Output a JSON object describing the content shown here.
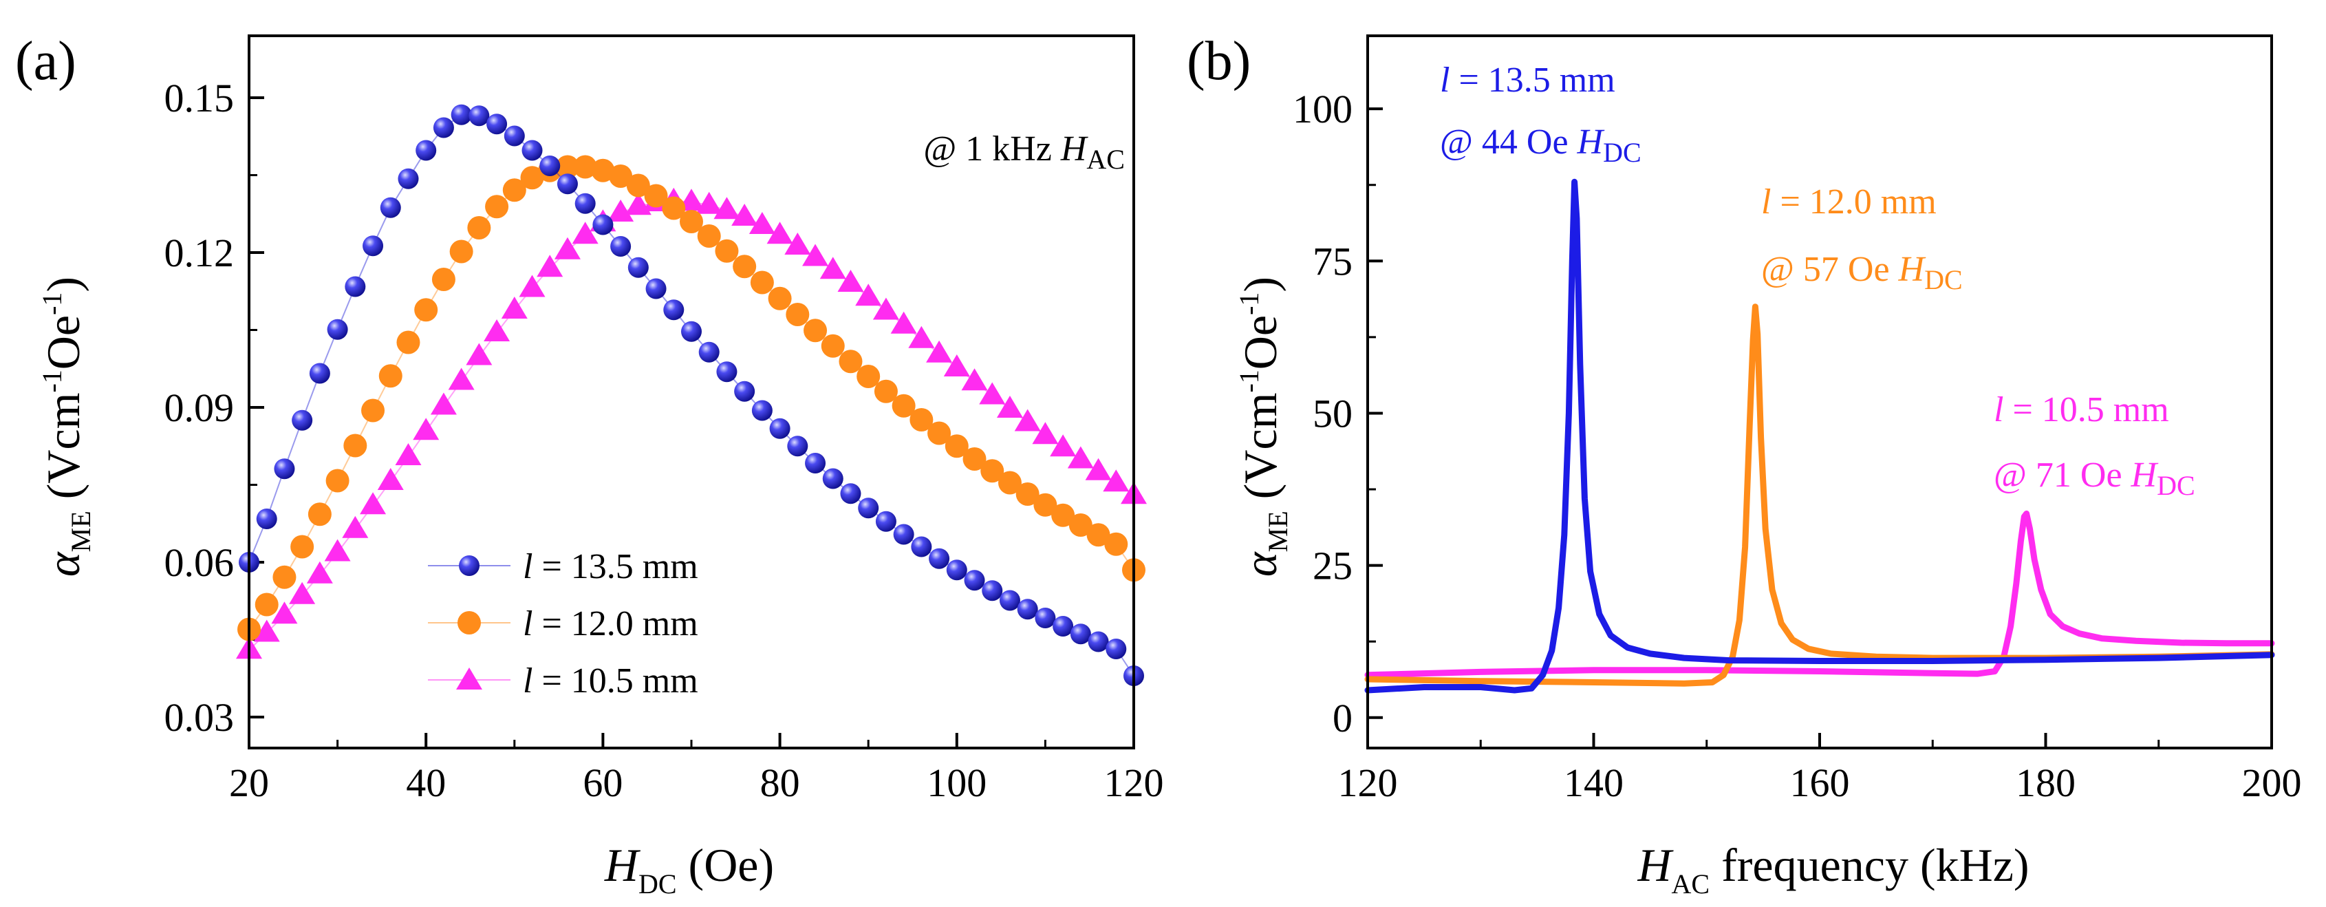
{
  "chart_data": [
    {
      "panel": "(a)",
      "type": "scatter",
      "xlabel_main": "H",
      "xlabel_sub": "DC",
      "xlabel_rest": " (Oe)",
      "ylabel_main": "α",
      "ylabel_sub": "ME",
      "ylabel_rest": " (Vcm",
      "ylabel_exp1": "-1",
      "ylabel_mid": "Oe",
      "ylabel_exp2": "-1",
      "ylabel_end": ")",
      "annotation_pre": "@ 1 kHz ",
      "annotation_main": "H",
      "annotation_sub": "AC",
      "xlim": [
        20,
        120
      ],
      "ylim": [
        0.024,
        0.162
      ],
      "xticks": [
        20,
        40,
        60,
        80,
        100,
        120
      ],
      "xtick_labels": [
        "20",
        "40",
        "60",
        "80",
        "100",
        "120"
      ],
      "yticks": [
        0.03,
        0.06,
        0.09,
        0.12,
        0.15
      ],
      "ytick_labels": [
        "0.03",
        "0.06",
        "0.09",
        "0.12",
        "0.15"
      ],
      "legend_position": "bottom-left",
      "x": [
        20,
        22,
        24,
        26,
        28,
        30,
        32,
        34,
        36,
        38,
        40,
        42,
        44,
        46,
        48,
        50,
        52,
        54,
        56,
        58,
        60,
        62,
        64,
        66,
        68,
        70,
        72,
        74,
        76,
        78,
        80,
        82,
        84,
        86,
        88,
        90,
        92,
        94,
        96,
        98,
        100,
        102,
        104,
        106,
        108,
        110,
        112,
        114,
        116,
        118,
        120
      ],
      "series": [
        {
          "name": "13.5 mm",
          "legend_var": "l",
          "legend_text": " = 13.5 mm",
          "color": "#2020d8",
          "marker": "sphere",
          "values": [
            0.06,
            0.0684,
            0.0781,
            0.0875,
            0.0966,
            0.1051,
            0.1134,
            0.1213,
            0.1287,
            0.1343,
            0.1398,
            0.1442,
            0.1467,
            0.1465,
            0.1449,
            0.1426,
            0.1398,
            0.1368,
            0.1333,
            0.1295,
            0.1254,
            0.1212,
            0.1171,
            0.113,
            0.1089,
            0.1047,
            0.1007,
            0.0969,
            0.0931,
            0.0894,
            0.0859,
            0.0825,
            0.0792,
            0.0762,
            0.0733,
            0.0705,
            0.0679,
            0.0654,
            0.063,
            0.0607,
            0.0585,
            0.0565,
            0.0545,
            0.0526,
            0.0509,
            0.0492,
            0.0476,
            0.0461,
            0.0446,
            0.0432,
            0.038
          ]
        },
        {
          "name": "12.0 mm",
          "legend_var": "l",
          "legend_text": " = 12.0 mm",
          "color": "#ff8c1a",
          "marker": "circle",
          "values": [
            0.047,
            0.0518,
            0.0571,
            0.063,
            0.0693,
            0.0758,
            0.0826,
            0.0894,
            0.0961,
            0.1026,
            0.1089,
            0.1148,
            0.1202,
            0.1248,
            0.1289,
            0.1321,
            0.1345,
            0.1359,
            0.1366,
            0.1366,
            0.1359,
            0.1348,
            0.133,
            0.131,
            0.1286,
            0.126,
            0.1232,
            0.1203,
            0.1173,
            0.1142,
            0.1111,
            0.108,
            0.1049,
            0.1019,
            0.0989,
            0.096,
            0.0931,
            0.0903,
            0.0876,
            0.085,
            0.0825,
            0.08,
            0.0777,
            0.0754,
            0.0732,
            0.0711,
            0.0691,
            0.0672,
            0.0653,
            0.0635,
            0.0585
          ]
        },
        {
          "name": "10.5 mm",
          "legend_var": "l",
          "legend_text": " = 10.5 mm",
          "color": "#ff2cf0",
          "marker": "triangle",
          "values": [
            0.043,
            0.0463,
            0.0498,
            0.0536,
            0.0576,
            0.0619,
            0.0664,
            0.071,
            0.0757,
            0.0805,
            0.0854,
            0.0903,
            0.0951,
            0.0999,
            0.1045,
            0.1089,
            0.1131,
            0.117,
            0.1204,
            0.1234,
            0.1258,
            0.1277,
            0.129,
            0.1297,
            0.13,
            0.1298,
            0.1292,
            0.1282,
            0.1269,
            0.1253,
            0.1234,
            0.1213,
            0.1191,
            0.1166,
            0.1141,
            0.1114,
            0.1087,
            0.106,
            0.1032,
            0.1004,
            0.0977,
            0.095,
            0.0923,
            0.0897,
            0.0871,
            0.0846,
            0.0822,
            0.0799,
            0.0776,
            0.0754,
            0.073
          ]
        }
      ]
    },
    {
      "panel": "(b)",
      "type": "line",
      "xlabel_main": "H",
      "xlabel_sub": "AC",
      "xlabel_rest": " frequency (kHz)",
      "ylabel_main": "α",
      "ylabel_sub": "ME",
      "ylabel_rest": " (Vcm",
      "ylabel_exp1": "-1",
      "ylabel_mid": "Oe",
      "ylabel_exp2": "-1",
      "ylabel_end": ")",
      "xlim": [
        120,
        200
      ],
      "ylim": [
        -5,
        112
      ],
      "xticks": [
        120,
        140,
        160,
        180,
        200
      ],
      "xtick_labels": [
        "120",
        "140",
        "160",
        "180",
        "200"
      ],
      "yticks": [
        0,
        25,
        50,
        75,
        100
      ],
      "ytick_labels": [
        "0",
        "25",
        "50",
        "75",
        "100"
      ],
      "series": [
        {
          "name": "13.5 mm",
          "color": "#1c1ce6",
          "label_var": "l",
          "label_text": " = 13.5 mm",
          "label_line2": "@ 44 Oe ",
          "label_h": "H",
          "label_sub": "DC",
          "points": [
            [
              120,
              4.5
            ],
            [
              125,
              5.0
            ],
            [
              130,
              5.0
            ],
            [
              133,
              4.5
            ],
            [
              134.5,
              4.8
            ],
            [
              135.5,
              7.0
            ],
            [
              136.3,
              11.0
            ],
            [
              136.9,
              18.0
            ],
            [
              137.4,
              30.0
            ],
            [
              137.8,
              50.0
            ],
            [
              138.1,
              75.0
            ],
            [
              138.3,
              88.0
            ],
            [
              138.5,
              82.0
            ],
            [
              138.8,
              58.0
            ],
            [
              139.2,
              36.0
            ],
            [
              139.7,
              24.0
            ],
            [
              140.5,
              17.0
            ],
            [
              141.5,
              13.5
            ],
            [
              143,
              11.5
            ],
            [
              145,
              10.5
            ],
            [
              148,
              9.8
            ],
            [
              152,
              9.4
            ],
            [
              160,
              9.3
            ],
            [
              170,
              9.3
            ],
            [
              180,
              9.5
            ],
            [
              190,
              9.8
            ],
            [
              200,
              10.3
            ]
          ]
        },
        {
          "name": "12.0 mm",
          "color": "#ff8c1a",
          "label_var": "l",
          "label_text": " = 12.0 mm",
          "label_line2": "@ 57 Oe ",
          "label_h": "H",
          "label_sub": "DC",
          "points": [
            [
              120,
              6.3
            ],
            [
              130,
              6.0
            ],
            [
              140,
              5.8
            ],
            [
              148,
              5.6
            ],
            [
              150.5,
              5.8
            ],
            [
              151.5,
              7.0
            ],
            [
              152.3,
              10.0
            ],
            [
              152.9,
              16.0
            ],
            [
              153.4,
              28.0
            ],
            [
              153.8,
              48.0
            ],
            [
              154.1,
              62.0
            ],
            [
              154.3,
              67.5
            ],
            [
              154.5,
              63.0
            ],
            [
              154.8,
              46.0
            ],
            [
              155.2,
              31.0
            ],
            [
              155.8,
              21.0
            ],
            [
              156.6,
              15.5
            ],
            [
              157.6,
              12.8
            ],
            [
              159,
              11.3
            ],
            [
              161,
              10.5
            ],
            [
              165,
              10.0
            ],
            [
              170,
              9.8
            ],
            [
              180,
              9.8
            ],
            [
              190,
              10.0
            ],
            [
              200,
              10.4
            ]
          ]
        },
        {
          "name": "10.5 mm",
          "color": "#ff2cf0",
          "label_var": "l",
          "label_text": " = 10.5 mm",
          "label_line2": "@ 71 Oe ",
          "label_h": "H",
          "label_sub": "DC",
          "points": [
            [
              120,
              7.0
            ],
            [
              130,
              7.5
            ],
            [
              140,
              7.8
            ],
            [
              150,
              7.8
            ],
            [
              160,
              7.6
            ],
            [
              170,
              7.3
            ],
            [
              174,
              7.2
            ],
            [
              175.5,
              7.6
            ],
            [
              176.3,
              10.0
            ],
            [
              176.9,
              15.0
            ],
            [
              177.4,
              22.0
            ],
            [
              177.8,
              29.0
            ],
            [
              178.1,
              33.0
            ],
            [
              178.3,
              33.5
            ],
            [
              178.6,
              31.0
            ],
            [
              179,
              26.0
            ],
            [
              179.6,
              21.0
            ],
            [
              180.4,
              17.0
            ],
            [
              181.5,
              15.0
            ],
            [
              183,
              13.8
            ],
            [
              185,
              13.0
            ],
            [
              188,
              12.6
            ],
            [
              192,
              12.3
            ],
            [
              196,
              12.2
            ],
            [
              200,
              12.2
            ]
          ]
        }
      ]
    }
  ]
}
